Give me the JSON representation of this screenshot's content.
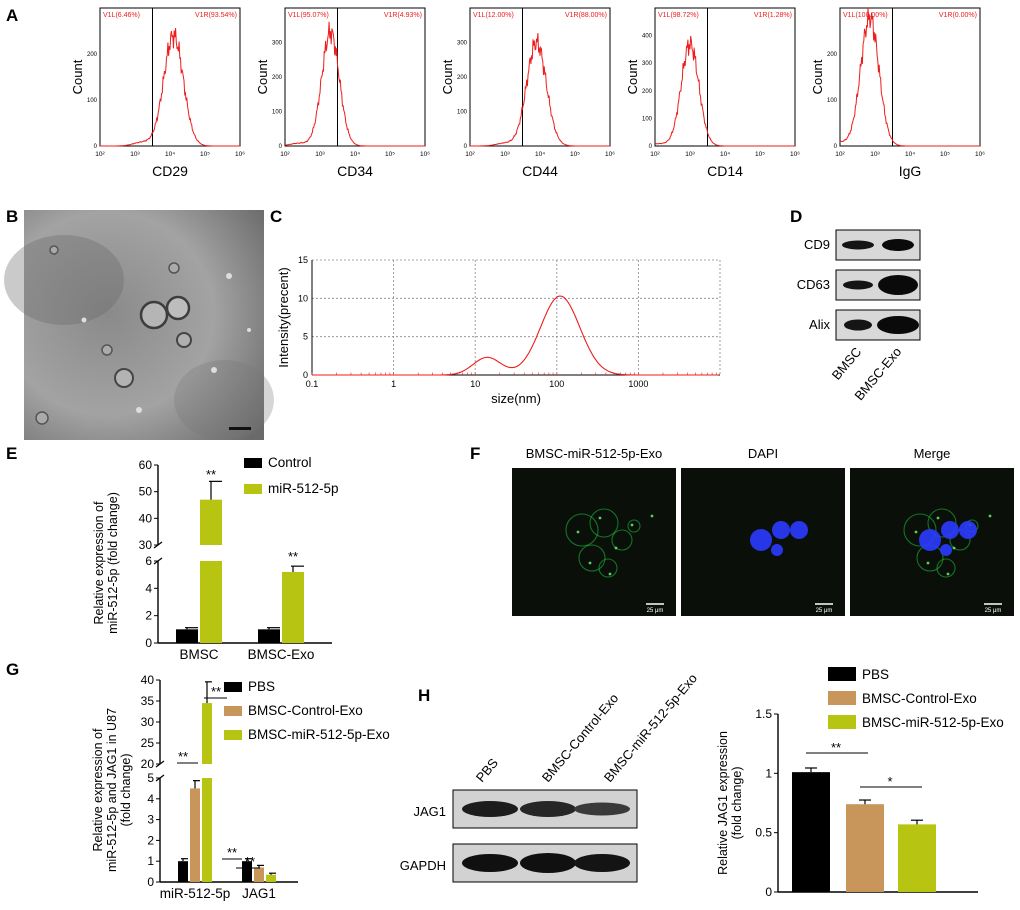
{
  "panels": {
    "A": "A",
    "B": "B",
    "C": "C",
    "D": "D",
    "E": "E",
    "F": "F",
    "G": "G",
    "H": "H"
  },
  "colors": {
    "red": "#ee1c1c",
    "black": "#000000",
    "tan": "#c8955a",
    "lime": "#b7c412",
    "green": "#1ec83a",
    "blue": "#2a3bff"
  },
  "histograms": [
    {
      "marker": "CD29",
      "left_gate": "V1L(6.46%)",
      "right_gate": "V1R(93.54%)",
      "ylabel": "Count",
      "yticks": [
        "0",
        "100",
        "200"
      ],
      "xticks": [
        "10²",
        "10³",
        "10⁴",
        "10⁵",
        "10⁶"
      ],
      "peak_log": 4.1,
      "width": 0.28,
      "height": 240
    },
    {
      "marker": "CD34",
      "left_gate": "V1L(95.07%)",
      "right_gate": "V1R(4.93%)",
      "ylabel": "Count",
      "yticks": [
        "0",
        "100",
        "200",
        "300"
      ],
      "xticks": [
        "10²",
        "10³",
        "10⁴",
        "10⁵",
        "10⁶"
      ],
      "peak_log": 3.3,
      "width": 0.25,
      "height": 330
    },
    {
      "marker": "CD44",
      "left_gate": "V1L(12.00%)",
      "right_gate": "V1R(88.00%)",
      "ylabel": "Count",
      "yticks": [
        "0",
        "100",
        "200",
        "300"
      ],
      "xticks": [
        "10²",
        "10³",
        "10⁴",
        "10⁵",
        "10⁶"
      ],
      "peak_log": 3.9,
      "width": 0.28,
      "height": 300
    },
    {
      "marker": "CD14",
      "left_gate": "V1L(98.72%)",
      "right_gate": "V1R(1.28%)",
      "ylabel": "Count",
      "yticks": [
        "0",
        "100",
        "200",
        "300",
        "400"
      ],
      "xticks": [
        "10²",
        "10³",
        "10⁴",
        "10⁵",
        "10⁶"
      ],
      "peak_log": 3.0,
      "width": 0.25,
      "height": 370
    },
    {
      "marker": "IgG",
      "left_gate": "V1L(100.00%)",
      "right_gate": "V1R(0.00%)",
      "ylabel": "Count",
      "yticks": [
        "0",
        "100",
        "200"
      ],
      "xticks": [
        "10²",
        "10³",
        "10⁴",
        "10⁵",
        "10⁶"
      ],
      "peak_log": 2.85,
      "width": 0.26,
      "height": 280
    }
  ],
  "tem": {
    "label": "B"
  },
  "size_chart": {
    "xlabel": "size(nm)",
    "ylabel": "Intensity(precent)",
    "xticks": [
      "0.1",
      "1",
      "10",
      "100",
      "1000"
    ],
    "yticks": [
      "0",
      "5",
      "10",
      "15"
    ],
    "peaks": [
      {
        "x": 14,
        "y": 2.3
      },
      {
        "x": 110,
        "y": 10.3
      }
    ]
  },
  "western_d": {
    "rows": [
      "CD9",
      "CD63",
      "Alix"
    ],
    "lanes": [
      "BMSC",
      "BMSC-Exo"
    ]
  },
  "chart_e": {
    "ylabel_lines": [
      "Relative expression of",
      "miR-512-5p (fold change)"
    ],
    "categories": [
      "BMSC",
      "BMSC-Exo"
    ],
    "series": [
      {
        "name": "Control",
        "values": [
          1.0,
          1.0
        ]
      },
      {
        "name": "miR-512-5p",
        "values": [
          47,
          5.2
        ]
      }
    ],
    "sig": [
      "**",
      "**"
    ],
    "lower_ticks": [
      "0",
      "2",
      "4",
      "6"
    ],
    "upper_ticks": [
      "30",
      "40",
      "50",
      "60"
    ]
  },
  "fluor": {
    "titles": [
      "BMSC-miR-512-5p-Exo",
      "DAPI",
      "Merge"
    ],
    "scale": "25 μm"
  },
  "chart_g": {
    "ylabel_lines": [
      "Relative expression of",
      "miR-512-5p and JAG1 in U87",
      "(fold change)"
    ],
    "categories": [
      "miR-512-5p",
      "JAG1"
    ],
    "series": [
      {
        "name": "PBS",
        "values": [
          1.0,
          1.0
        ]
      },
      {
        "name": "BMSC-Control-Exo",
        "values": [
          4.5,
          0.7
        ]
      },
      {
        "name": "BMSC-miR-512-5p-Exo",
        "values": [
          34.5,
          0.35
        ]
      }
    ],
    "sig": [
      "**",
      "**",
      "**",
      "**"
    ],
    "lower_ticks": [
      "0",
      "1",
      "2",
      "3",
      "4",
      "5"
    ],
    "upper_ticks": [
      "20",
      "25",
      "30",
      "35",
      "40"
    ]
  },
  "western_h": {
    "lanes": [
      "PBS",
      "BMSC-Control-Exo",
      "BMSC-miR-512-5p-Exo"
    ],
    "rows": [
      "JAG1",
      "GAPDH"
    ]
  },
  "chart_h": {
    "ylabel_lines": [
      "Relative JAG1 expression",
      "(fold change)"
    ],
    "categories": [
      "PBS",
      "BMSC-Control-Exo",
      "BMSC-miR-512-5p-Exo"
    ],
    "values": [
      1.01,
      0.74,
      0.57
    ],
    "yticks": [
      "0",
      "0.5",
      "1",
      "1.5"
    ],
    "ylim": [
      0,
      1.5
    ],
    "sig": [
      "**",
      "*"
    ]
  }
}
